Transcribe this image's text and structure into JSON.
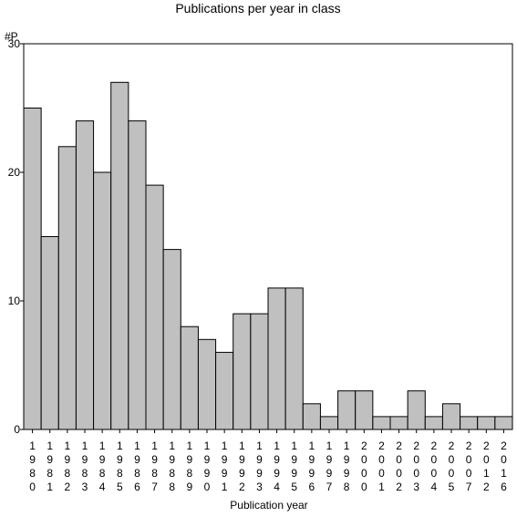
{
  "chart_data": {
    "type": "bar",
    "title": "Publications per year in class",
    "ylabel": "#P",
    "xlabel": "Publication year",
    "ylim": [
      0,
      30
    ],
    "yticks": [
      0,
      10,
      20,
      30
    ],
    "grid": false,
    "bar_color": "#c0c0c0",
    "categories": [
      "1980",
      "1981",
      "1982",
      "1983",
      "1984",
      "1985",
      "1986",
      "1987",
      "1988",
      "1989",
      "1990",
      "1991",
      "1992",
      "1993",
      "1994",
      "1995",
      "1996",
      "1997",
      "1998",
      "2000",
      "2001",
      "2002",
      "2003",
      "2004",
      "2005",
      "2007",
      "2012",
      "2016"
    ],
    "values": [
      25,
      15,
      22,
      24,
      20,
      27,
      24,
      19,
      14,
      8,
      7,
      6,
      9,
      9,
      11,
      11,
      2,
      1,
      3,
      3,
      1,
      1,
      3,
      1,
      2,
      1,
      1,
      1
    ]
  }
}
